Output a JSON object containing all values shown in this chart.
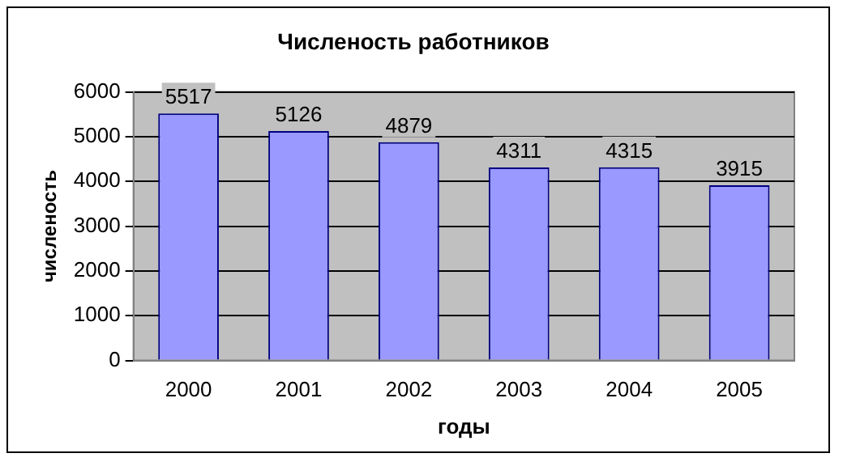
{
  "chart_data": {
    "type": "bar",
    "title": "Численость работников",
    "xlabel": "годы",
    "ylabel": "численость",
    "categories": [
      "2000",
      "2001",
      "2002",
      "2003",
      "2004",
      "2005"
    ],
    "values": [
      5517,
      5126,
      4879,
      4311,
      4315,
      3915
    ],
    "color": "#9999ff",
    "ylim": [
      0,
      6000
    ],
    "yticks": [
      0,
      1000,
      2000,
      3000,
      4000,
      5000,
      6000
    ],
    "grid": "y",
    "data_labels": true,
    "legend": false
  }
}
